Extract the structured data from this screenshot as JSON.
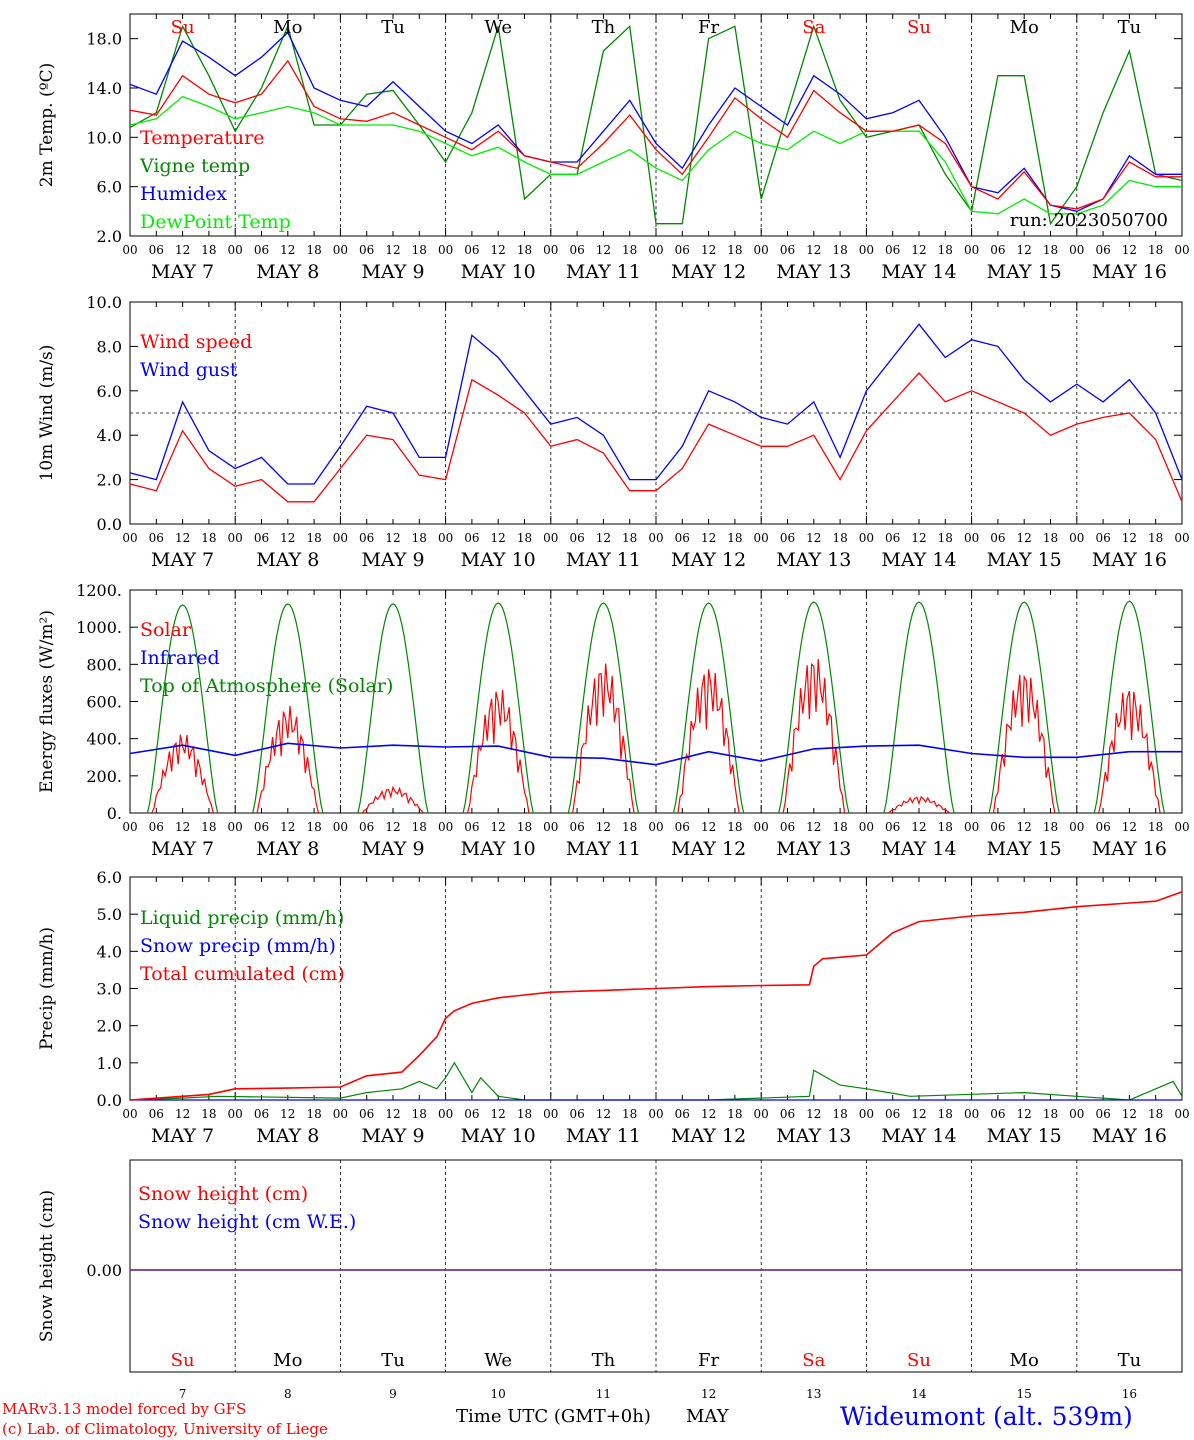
{
  "days": {
    "names": [
      "Su",
      "Mo",
      "Tu",
      "We",
      "Th",
      "Fr",
      "Sa",
      "Su",
      "Mo",
      "Tu"
    ],
    "weekend": [
      true,
      false,
      false,
      false,
      false,
      false,
      true,
      true,
      false,
      false
    ],
    "dates": [
      "MAY   7",
      "MAY   8",
      "MAY   9",
      "MAY 10",
      "MAY 11",
      "MAY 12",
      "MAY 13",
      "MAY 14",
      "MAY 15",
      "MAY 16"
    ],
    "numbers": [
      "7",
      "8",
      "9",
      "10",
      "11",
      "12",
      "13",
      "14",
      "15",
      "16"
    ],
    "hour_ticks": [
      "00",
      "06",
      "12",
      "18"
    ],
    "last_tick": "00"
  },
  "colors": {
    "red": "#ff0000",
    "green": "#008800",
    "blue": "#0000ff",
    "lightgreen": "#00ee00",
    "purple": "#7030a0"
  },
  "chart_data": [
    {
      "type": "line",
      "ylabel": "2m Temp. (ºC)",
      "ylim": [
        2,
        20
      ],
      "yticks": [
        "2.0",
        "6.0",
        "10.0",
        "14.0",
        "18.0"
      ],
      "x_unit": "hours since 2023-05-07 00 UTC",
      "annotation": "run: 2023050700",
      "series": [
        {
          "name": "Temperature",
          "color": "#ff0000",
          "x": [
            0,
            6,
            12,
            18,
            24,
            30,
            36,
            42,
            48,
            54,
            60,
            66,
            72,
            78,
            84,
            90,
            96,
            102,
            108,
            114,
            120,
            126,
            132,
            138,
            144,
            150,
            156,
            162,
            168,
            174,
            180,
            186,
            192,
            198,
            204,
            210,
            216,
            222,
            228,
            234,
            240
          ],
          "y": [
            12.2,
            11.8,
            15,
            13.5,
            12.8,
            13.5,
            16.2,
            12.5,
            11.5,
            11.3,
            12,
            11,
            10,
            9,
            10.5,
            8.5,
            8,
            7.5,
            9.5,
            11.8,
            9,
            7,
            10,
            13.2,
            11.5,
            10,
            13.8,
            12,
            10.5,
            10.5,
            11,
            9.5,
            6,
            5,
            7.2,
            4.5,
            4.2,
            5,
            8,
            6.8,
            6.8
          ]
        },
        {
          "name": "Vigne temp",
          "color": "#008800",
          "x": [
            0,
            6,
            12,
            18,
            24,
            30,
            36,
            42,
            48,
            54,
            60,
            66,
            72,
            78,
            84,
            90,
            96,
            102,
            108,
            114,
            120,
            126,
            132,
            138,
            144,
            150,
            156,
            162,
            168,
            174,
            180,
            186,
            192,
            198,
            204,
            210,
            216,
            222,
            228,
            234,
            240
          ],
          "y": [
            10.8,
            12,
            19,
            15,
            10.5,
            14,
            19,
            11,
            11,
            13.5,
            13.8,
            11,
            8,
            12,
            19,
            5,
            7,
            7,
            17,
            19,
            3,
            3,
            18,
            19,
            5,
            12,
            19,
            13,
            10,
            10.5,
            11,
            7,
            4,
            15,
            15,
            3,
            6,
            12,
            17,
            7,
            6.5
          ]
        },
        {
          "name": "Humidex",
          "color": "#0000ff",
          "x": [
            0,
            6,
            12,
            18,
            24,
            30,
            36,
            42,
            48,
            54,
            60,
            66,
            72,
            78,
            84,
            90,
            96,
            102,
            108,
            114,
            120,
            126,
            132,
            138,
            144,
            150,
            156,
            162,
            168,
            174,
            180,
            186,
            192,
            198,
            204,
            210,
            216,
            222,
            228,
            234,
            240
          ],
          "y": [
            14.3,
            13.5,
            17.8,
            16.5,
            15,
            16.5,
            18.5,
            14,
            13,
            12.5,
            14.5,
            12.5,
            10.5,
            9.5,
            11,
            8.5,
            8,
            8,
            10.5,
            13,
            9.5,
            7.5,
            11,
            14,
            12.5,
            11,
            15,
            13.5,
            11.5,
            12,
            13,
            10,
            6,
            5.5,
            7.5,
            4.5,
            4,
            5,
            8.5,
            7,
            7
          ]
        },
        {
          "name": "DewPoint Temp",
          "color": "#00ee00",
          "x": [
            0,
            6,
            12,
            18,
            24,
            30,
            36,
            42,
            48,
            54,
            60,
            66,
            72,
            78,
            84,
            90,
            96,
            102,
            108,
            114,
            120,
            126,
            132,
            138,
            144,
            150,
            156,
            162,
            168,
            174,
            180,
            186,
            192,
            198,
            204,
            210,
            216,
            222,
            228,
            234,
            240
          ],
          "y": [
            11,
            11.5,
            13.3,
            12.5,
            11.5,
            12,
            12.5,
            12,
            11,
            11,
            11,
            10.5,
            9.5,
            8.5,
            9.2,
            8,
            7,
            7,
            8,
            9,
            7.5,
            6.5,
            9,
            10.5,
            9.5,
            9,
            10.5,
            9.5,
            10.5,
            10.5,
            10.5,
            8,
            4,
            3.8,
            5,
            3.8,
            3.8,
            4.5,
            6.5,
            6,
            6
          ]
        }
      ]
    },
    {
      "type": "line",
      "ylabel": "10m Wind (m/s)",
      "ylim": [
        0,
        10
      ],
      "yticks": [
        "0.0",
        "2.0",
        "4.0",
        "6.0",
        "8.0",
        "10.0"
      ],
      "reference_line": 5,
      "x_unit": "hours since 2023-05-07 00 UTC",
      "series": [
        {
          "name": "Wind speed",
          "color": "#ff0000",
          "x": [
            0,
            6,
            12,
            18,
            24,
            30,
            36,
            42,
            48,
            54,
            60,
            66,
            72,
            78,
            84,
            90,
            96,
            102,
            108,
            114,
            120,
            126,
            132,
            138,
            144,
            150,
            156,
            162,
            168,
            174,
            180,
            186,
            192,
            198,
            204,
            210,
            216,
            222,
            228,
            234,
            240
          ],
          "y": [
            1.8,
            1.5,
            4.2,
            2.5,
            1.7,
            2,
            1,
            1,
            2.5,
            4,
            3.8,
            2.2,
            2,
            6.5,
            5.8,
            5,
            3.5,
            3.8,
            3.2,
            1.5,
            1.5,
            2.5,
            4.5,
            4,
            3.5,
            3.5,
            4,
            2,
            4.2,
            5.5,
            6.8,
            5.5,
            6,
            5.5,
            5,
            4,
            4.5,
            4.8,
            5,
            3.8,
            1
          ]
        },
        {
          "name": "Wind gust",
          "color": "#0000ff",
          "x": [
            0,
            6,
            12,
            18,
            24,
            30,
            36,
            42,
            48,
            54,
            60,
            66,
            72,
            78,
            84,
            90,
            96,
            102,
            108,
            114,
            120,
            126,
            132,
            138,
            144,
            150,
            156,
            162,
            168,
            174,
            180,
            186,
            192,
            198,
            204,
            210,
            216,
            222,
            228,
            234,
            240
          ],
          "y": [
            2.3,
            2,
            5.5,
            3.3,
            2.5,
            3,
            1.8,
            1.8,
            3.5,
            5.3,
            5,
            3,
            3,
            8.5,
            7.5,
            6,
            4.5,
            4.8,
            4,
            2,
            2,
            3.5,
            6,
            5.5,
            4.8,
            4.5,
            5.5,
            3,
            6,
            7.5,
            9,
            7.5,
            8.3,
            8,
            6.5,
            5.5,
            6.3,
            5.5,
            6.5,
            5,
            2
          ]
        }
      ]
    },
    {
      "type": "line",
      "ylabel": "Energy fluxes (W/m²)",
      "ylim": [
        0,
        1200
      ],
      "yticks": [
        "0.",
        "200.",
        "400.",
        "600.",
        "800.",
        "1000.",
        "1200."
      ],
      "x_unit": "hours since 2023-05-07 00 UTC",
      "series": [
        {
          "name": "Solar",
          "color": "#ff0000",
          "daily_peak_wm2": [
            430,
            580,
            140,
            680,
            820,
            800,
            860,
            90,
            780,
            690
          ]
        },
        {
          "name": "Infrared",
          "color": "#0000ff",
          "x": [
            0,
            12,
            24,
            36,
            48,
            60,
            72,
            84,
            96,
            108,
            120,
            132,
            144,
            156,
            168,
            180,
            192,
            204,
            216,
            228,
            240
          ],
          "y": [
            320,
            365,
            310,
            375,
            350,
            365,
            355,
            360,
            300,
            295,
            260,
            330,
            280,
            345,
            360,
            365,
            320,
            300,
            300,
            330,
            330
          ]
        },
        {
          "name": "Top of Atmosphere (Solar)",
          "color": "#008800",
          "daily_peak_wm2": [
            1120,
            1125,
            1125,
            1130,
            1130,
            1130,
            1135,
            1135,
            1135,
            1140
          ]
        }
      ]
    },
    {
      "type": "line",
      "ylabel": "Precip (mm/h)",
      "ylim": [
        0,
        6
      ],
      "yticks": [
        "0.0",
        "1.0",
        "2.0",
        "3.0",
        "4.0",
        "5.0",
        "6.0"
      ],
      "x_unit": "hours since 2023-05-07 00 UTC",
      "series": [
        {
          "name": "Liquid precip (mm/h)",
          "color": "#008800",
          "x": [
            0,
            12,
            20,
            48,
            54,
            62,
            66,
            70,
            72,
            74,
            78,
            80,
            84,
            90,
            96,
            120,
            132,
            155,
            156,
            162,
            168,
            178,
            204,
            216,
            228,
            238,
            240
          ],
          "y": [
            0,
            0.05,
            0.1,
            0.05,
            0.2,
            0.3,
            0.5,
            0.3,
            0.6,
            1,
            0.2,
            0.6,
            0.1,
            0,
            0,
            0,
            0,
            0.1,
            0.8,
            0.4,
            0.3,
            0.1,
            0.2,
            0.1,
            0,
            0.5,
            0.1
          ]
        },
        {
          "name": "Snow precip (mm/h)",
          "color": "#0000ff",
          "x": [
            0,
            240
          ],
          "y": [
            0,
            0
          ]
        },
        {
          "name": "Total cumulated (cm)",
          "color": "#ff0000",
          "x": [
            0,
            12,
            18,
            24,
            36,
            48,
            54,
            62,
            66,
            70,
            72,
            74,
            78,
            84,
            96,
            108,
            120,
            132,
            144,
            155,
            156,
            158,
            168,
            174,
            180,
            192,
            204,
            216,
            228,
            234,
            240
          ],
          "y": [
            0,
            0.1,
            0.15,
            0.3,
            0.32,
            0.35,
            0.65,
            0.75,
            1.2,
            1.7,
            2.2,
            2.4,
            2.6,
            2.75,
            2.9,
            2.95,
            3,
            3.05,
            3.08,
            3.1,
            3.6,
            3.8,
            3.9,
            4.5,
            4.8,
            4.95,
            5.05,
            5.2,
            5.3,
            5.35,
            5.6
          ]
        }
      ]
    },
    {
      "type": "line",
      "ylabel": "Snow height (cm)",
      "yticks": [
        "0.00"
      ],
      "x_unit": "hours since 2023-05-07 00 UTC",
      "series": [
        {
          "name": "Snow height (cm)",
          "color": "#ff0000",
          "x": [
            0,
            240
          ],
          "y": [
            0,
            0
          ]
        },
        {
          "name": "Snow height (cm W.E.)",
          "color": "#0000ff",
          "x": [
            0,
            240
          ],
          "y": [
            0,
            0
          ]
        }
      ]
    }
  ],
  "footer": {
    "model": "MARv3.13 model forced by GFS",
    "copyright": "(c) Lab. of Climatology, University of Liege",
    "xlabel": "Time UTC (GMT+0h)",
    "month": "MAY",
    "station": "Wideumont (alt. 539m)"
  }
}
